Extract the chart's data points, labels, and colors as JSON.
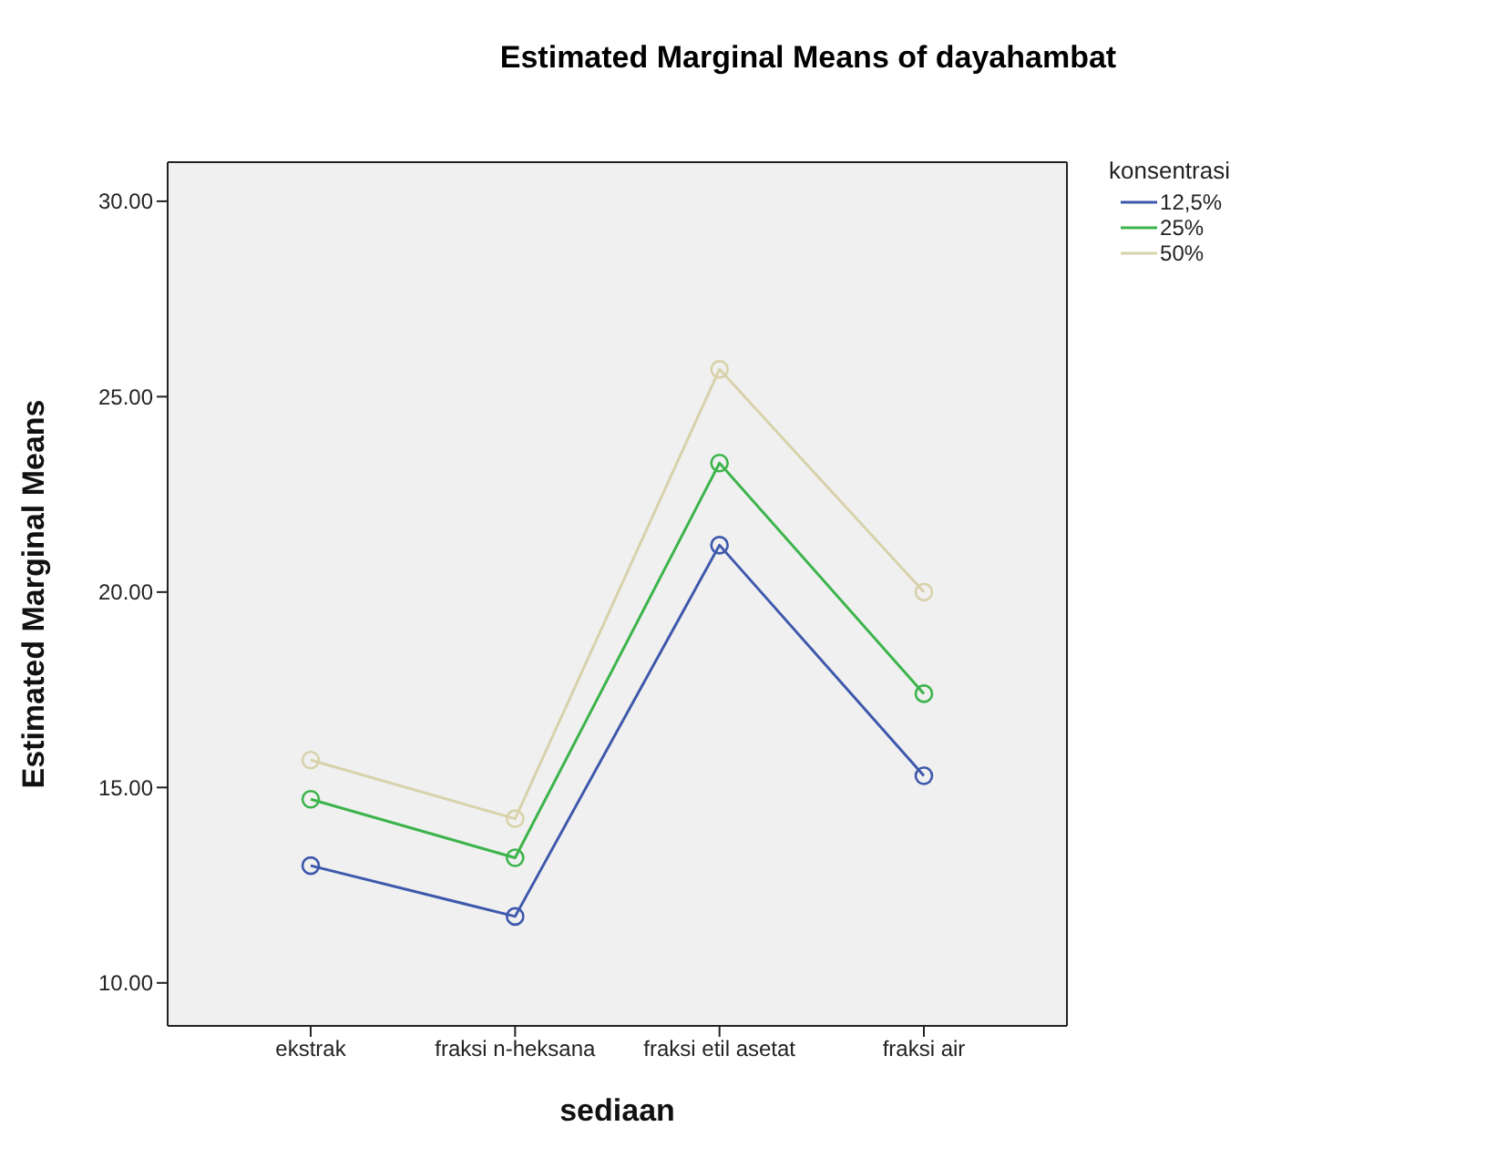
{
  "chart_data": {
    "type": "line",
    "title": "Estimated Marginal Means of dayahambat",
    "xlabel": "sediaan",
    "ylabel": "Estimated Marginal Means",
    "legend_title": "konsentrasi",
    "legend": "top right",
    "marker": "circle",
    "line_style": "solid",
    "categories": [
      "ekstrak",
      "fraksi n-heksana",
      "fraksi etil asetat",
      "fraksi air"
    ],
    "ylim": [
      8.9,
      31
    ],
    "yticks": [
      {
        "value": 10,
        "label": "10.00"
      },
      {
        "value": 15,
        "label": "15.00"
      },
      {
        "value": 20,
        "label": "20.00"
      },
      {
        "value": 25,
        "label": "25.00"
      },
      {
        "value": 30,
        "label": "30.00"
      }
    ],
    "series": [
      {
        "name": "12,5%",
        "color": "#3e58ac",
        "values": [
          13.0,
          11.7,
          21.2,
          15.3
        ]
      },
      {
        "name": "25%",
        "color": "#3cb44b",
        "values": [
          14.7,
          13.2,
          23.3,
          17.4
        ]
      },
      {
        "name": "50%",
        "color": "#d8d2ab",
        "values": [
          15.7,
          14.2,
          25.7,
          20.0
        ]
      }
    ]
  }
}
